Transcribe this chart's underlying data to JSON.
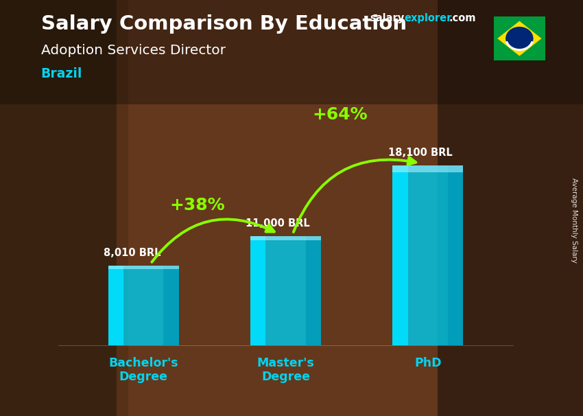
{
  "title_main": "Salary Comparison By Education",
  "title_sub": "Adoption Services Director",
  "title_country": "Brazil",
  "ylabel": "Average Monthly Salary",
  "categories": [
    "Bachelor's\nDegree",
    "Master's\nDegree",
    "PhD"
  ],
  "values": [
    8010,
    11000,
    18100
  ],
  "value_labels": [
    "8,010 BRL",
    "11,000 BRL",
    "18,100 BRL"
  ],
  "pct_labels": [
    "+38%",
    "+64%"
  ],
  "bar_color_face": "#00c8e8",
  "bar_color_left": "#00e0ff",
  "bar_color_dark": "#0098b8",
  "bar_alpha": 0.82,
  "bg_color": "#7a5030",
  "title_color": "#ffffff",
  "subtitle_color": "#ffffff",
  "country_color": "#00d4f0",
  "value_label_color": "#ffffff",
  "pct_label_color": "#88ff00",
  "arrow_color": "#88ff00",
  "xtick_color": "#00d4f0",
  "brand_salary_color": "#ffffff",
  "brand_explorer_color": "#00d4f0",
  "brand_com_color": "#ffffff",
  "ylim": [
    0,
    23000
  ],
  "bar_width": 0.5,
  "figsize": [
    8.5,
    6.06
  ],
  "dpi": 100
}
